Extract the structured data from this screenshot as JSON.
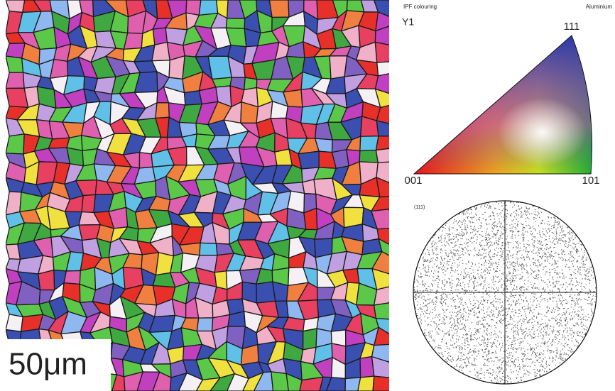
{
  "scale_bar": {
    "label": "50μm"
  },
  "ipf_key": {
    "title": "IPF colouring",
    "phase": "Aluminium",
    "direction": "Y1",
    "corners": {
      "top": "111",
      "left": "001",
      "right": "101"
    }
  },
  "pole_figure": {
    "label": "(111)"
  }
}
